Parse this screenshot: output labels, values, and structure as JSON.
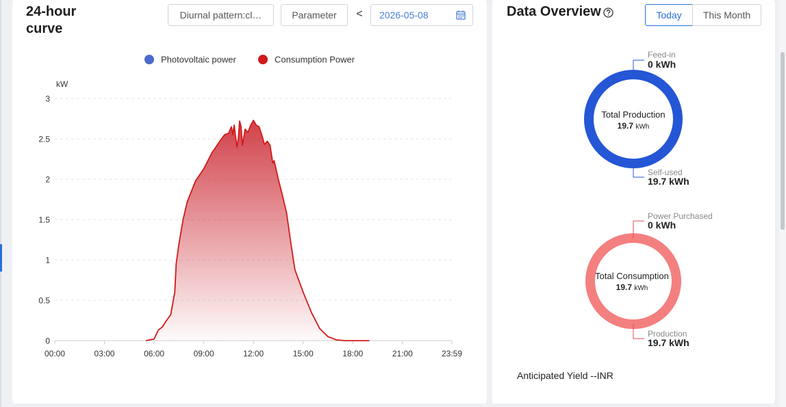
{
  "curve": {
    "title": "24-hour curve",
    "pattern_button": "Diurnal pattern:cl…",
    "parameter_button": "Parameter",
    "prev_day": "<",
    "date": "2026-05-08",
    "calendar_icon": "calendar-icon"
  },
  "chart_data": {
    "type": "area",
    "ylabel": "kW",
    "ylim": [
      0,
      3
    ],
    "y_ticks": [
      "0",
      "0.5",
      "1",
      "1.5",
      "2",
      "2.5",
      "3"
    ],
    "x_ticks": [
      "00:00",
      "03:00",
      "06:00",
      "09:00",
      "12:00",
      "15:00",
      "18:00",
      "21:00",
      "23:59"
    ],
    "grid": true,
    "legend_placement": "top-center",
    "series": [
      {
        "name": "Photovoltaic power",
        "color": "#4a6bc9",
        "values": []
      },
      {
        "name": "Consumption Power",
        "color": "#d11a1a",
        "x": [
          "05:30",
          "06:00",
          "06:15",
          "06:30",
          "06:45",
          "07:00",
          "07:15",
          "07:20",
          "07:30",
          "07:45",
          "08:00",
          "08:30",
          "09:00",
          "09:30",
          "10:00",
          "10:15",
          "10:30",
          "10:40",
          "10:45",
          "10:50",
          "11:00",
          "11:05",
          "11:10",
          "11:15",
          "11:20",
          "11:30",
          "11:40",
          "11:50",
          "12:00",
          "12:05",
          "12:10",
          "12:20",
          "12:30",
          "12:40",
          "12:50",
          "13:00",
          "13:10",
          "13:15",
          "13:30",
          "13:45",
          "14:00",
          "14:15",
          "14:30",
          "15:00",
          "15:30",
          "16:00",
          "16:30",
          "17:00",
          "17:30",
          "18:00",
          "18:30",
          "19:00"
        ],
        "values": [
          0,
          0.02,
          0.13,
          0.17,
          0.25,
          0.32,
          0.6,
          0.95,
          1.2,
          1.5,
          1.72,
          1.98,
          2.13,
          2.33,
          2.48,
          2.55,
          2.57,
          2.65,
          2.55,
          2.67,
          2.4,
          2.5,
          2.72,
          2.65,
          2.42,
          2.62,
          2.58,
          2.67,
          2.73,
          2.7,
          2.67,
          2.65,
          2.55,
          2.43,
          2.47,
          2.42,
          2.2,
          2.23,
          2.0,
          1.8,
          1.58,
          1.22,
          0.88,
          0.6,
          0.35,
          0.15,
          0.05,
          0.01,
          0,
          0,
          0,
          0
        ]
      }
    ]
  },
  "overview": {
    "title": "Data Overview",
    "help_icon": "help-circle-icon",
    "tabs": [
      "Today",
      "This Month"
    ],
    "active_tab": "Today",
    "production": {
      "feed_in_label": "Feed-in",
      "feed_in_value": "0 kWh",
      "center_label": "Total Production",
      "center_value": "19.7",
      "center_unit": "kWh",
      "self_used_label": "Self-used",
      "self_used_value": "19.7 kWh",
      "color": "#2456d6"
    },
    "consumption": {
      "purchased_label": "Power Purchased",
      "purchased_value": "0 kWh",
      "center_label": "Total Consumption",
      "center_value": "19.7",
      "center_unit": "kWh",
      "production_label": "Production",
      "production_value": "19.7 kWh",
      "color": "#f47f7f"
    },
    "anticipated_yield": "Anticipated Yield --INR"
  }
}
